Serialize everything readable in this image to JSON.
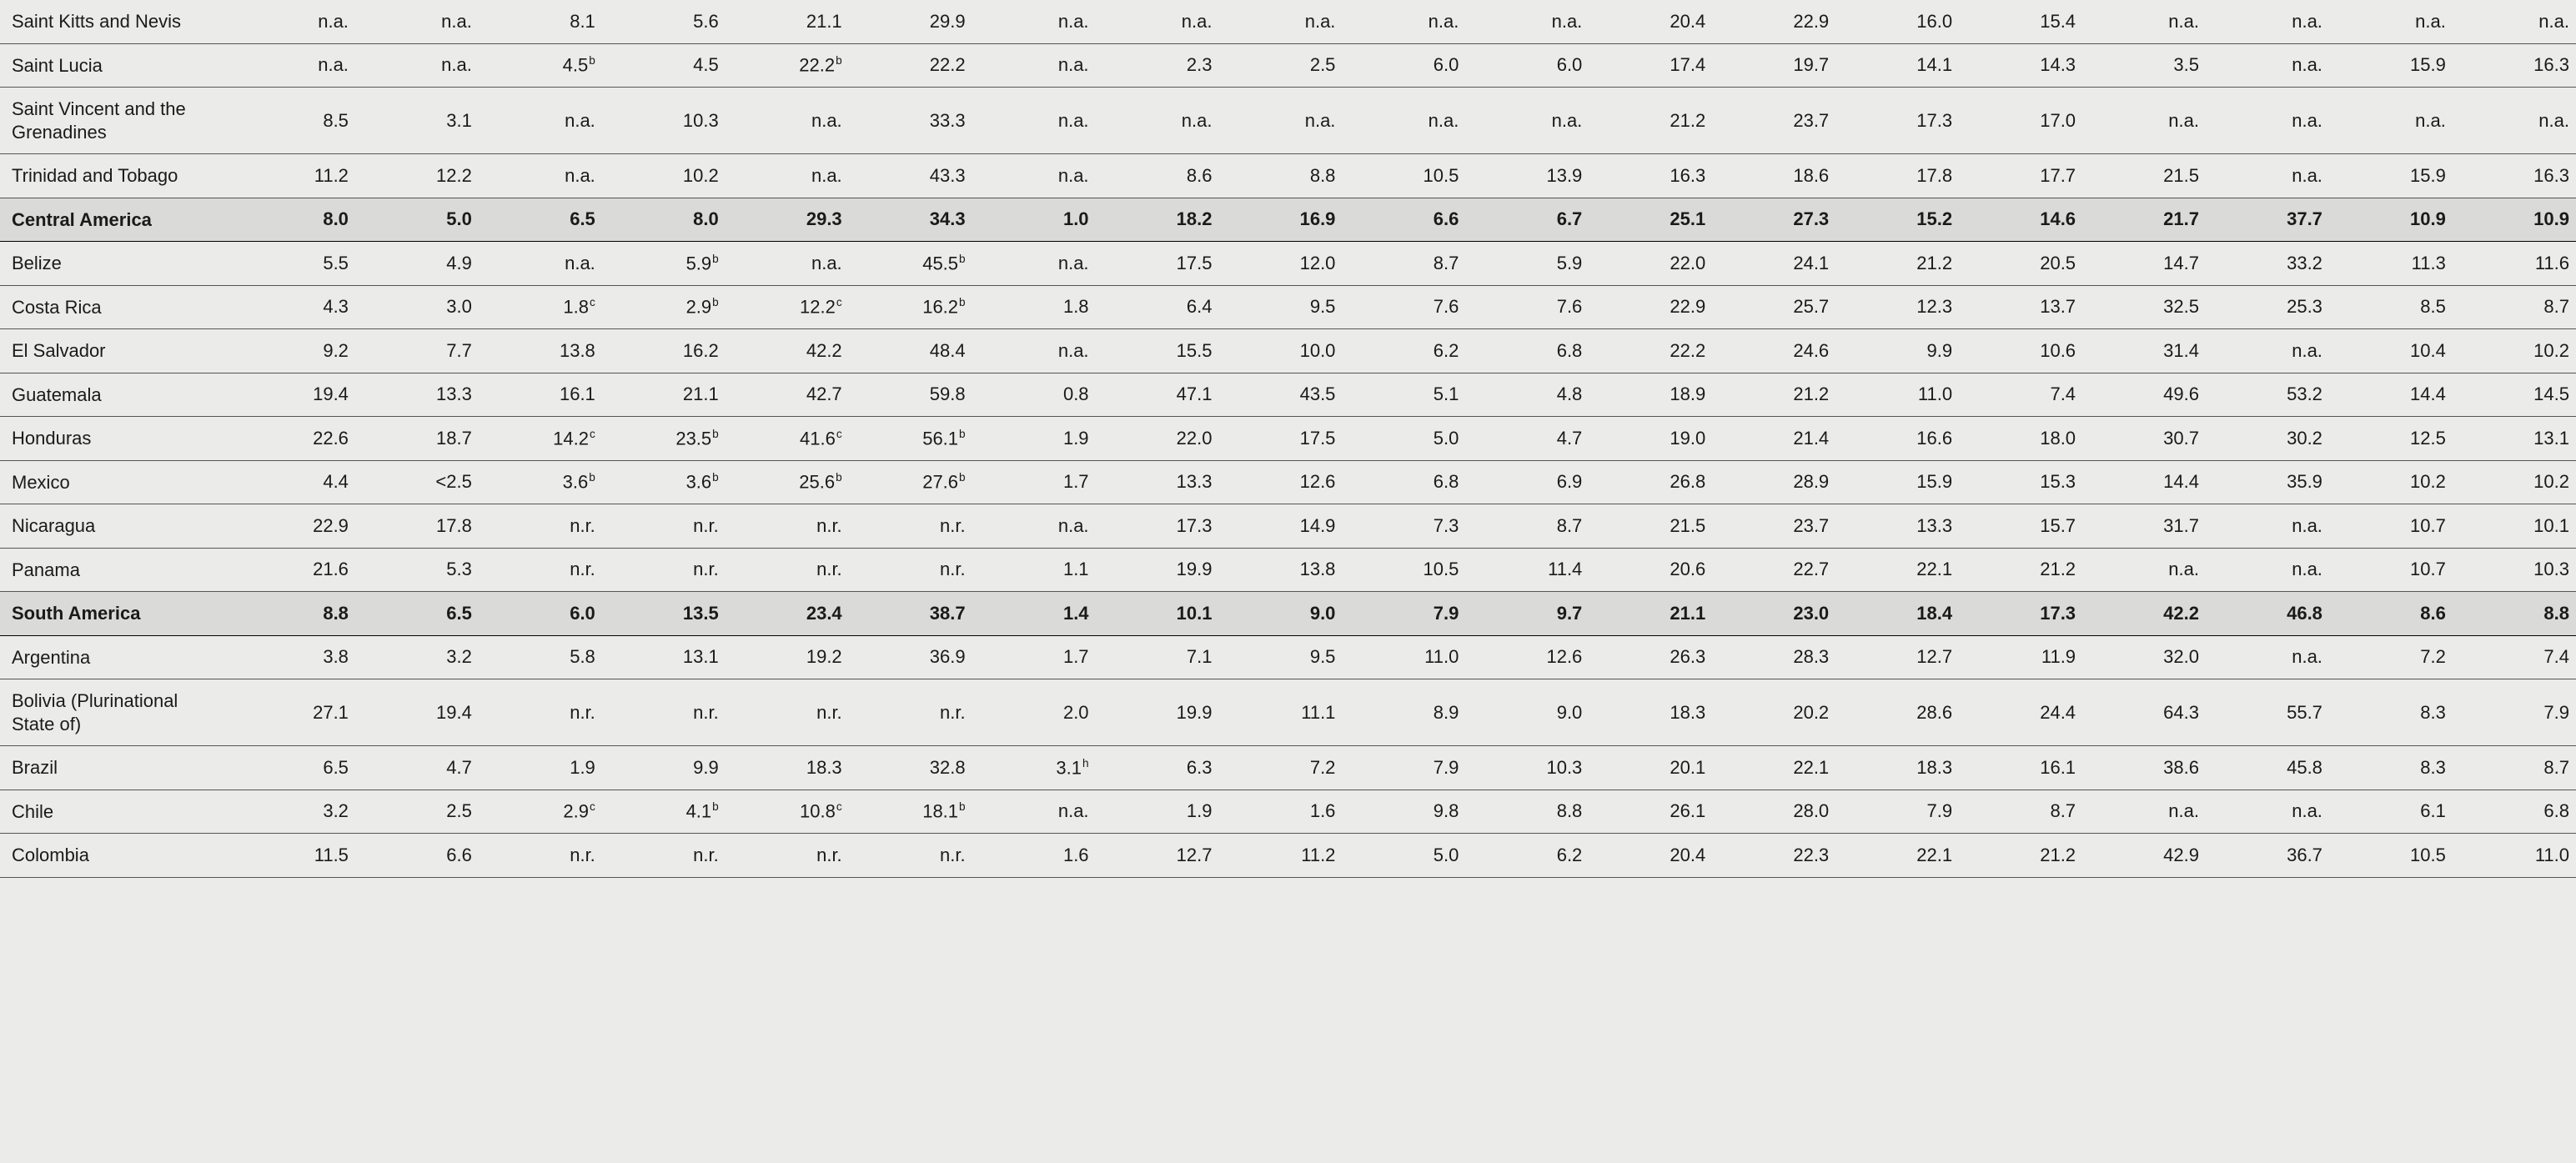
{
  "rows": [
    {
      "label": "Saint Kitts and Nevis",
      "region": false,
      "values": [
        "n.a.",
        "n.a.",
        "8.1",
        "5.6",
        "21.1",
        "29.9",
        "n.a.",
        "n.a.",
        "n.a.",
        "n.a.",
        "n.a.",
        "20.4",
        "22.9",
        "16.0",
        "15.4",
        "n.a.",
        "n.a.",
        "n.a.",
        "n.a."
      ],
      "notes": {}
    },
    {
      "label": "Saint Lucia",
      "region": false,
      "values": [
        "n.a.",
        "n.a.",
        "4.5",
        "4.5",
        "22.2",
        "22.2",
        "n.a.",
        "2.3",
        "2.5",
        "6.0",
        "6.0",
        "17.4",
        "19.7",
        "14.1",
        "14.3",
        "3.5",
        "n.a.",
        "15.9",
        "16.3"
      ],
      "notes": {
        "2": "b",
        "4": "b"
      }
    },
    {
      "label": "Saint Vincent and the Grenadines",
      "region": false,
      "values": [
        "8.5",
        "3.1",
        "n.a.",
        "10.3",
        "n.a.",
        "33.3",
        "n.a.",
        "n.a.",
        "n.a.",
        "n.a.",
        "n.a.",
        "21.2",
        "23.7",
        "17.3",
        "17.0",
        "n.a.",
        "n.a.",
        "n.a.",
        "n.a."
      ],
      "notes": {}
    },
    {
      "label": "Trinidad and Tobago",
      "region": false,
      "values": [
        "11.2",
        "12.2",
        "n.a.",
        "10.2",
        "n.a.",
        "43.3",
        "n.a.",
        "8.6",
        "8.8",
        "10.5",
        "13.9",
        "16.3",
        "18.6",
        "17.8",
        "17.7",
        "21.5",
        "n.a.",
        "15.9",
        "16.3"
      ],
      "notes": {}
    },
    {
      "label": "Central America",
      "region": true,
      "values": [
        "8.0",
        "5.0",
        "6.5",
        "8.0",
        "29.3",
        "34.3",
        "1.0",
        "18.2",
        "16.9",
        "6.6",
        "6.7",
        "25.1",
        "27.3",
        "15.2",
        "14.6",
        "21.7",
        "37.7",
        "10.9",
        "10.9"
      ],
      "notes": {}
    },
    {
      "label": "Belize",
      "region": false,
      "values": [
        "5.5",
        "4.9",
        "n.a.",
        "5.9",
        "n.a.",
        "45.5",
        "n.a.",
        "17.5",
        "12.0",
        "8.7",
        "5.9",
        "22.0",
        "24.1",
        "21.2",
        "20.5",
        "14.7",
        "33.2",
        "11.3",
        "11.6"
      ],
      "notes": {
        "3": "b",
        "5": "b"
      }
    },
    {
      "label": "Costa Rica",
      "region": false,
      "values": [
        "4.3",
        "3.0",
        "1.8",
        "2.9",
        "12.2",
        "16.2",
        "1.8",
        "6.4",
        "9.5",
        "7.6",
        "7.6",
        "22.9",
        "25.7",
        "12.3",
        "13.7",
        "32.5",
        "25.3",
        "8.5",
        "8.7"
      ],
      "notes": {
        "2": "c",
        "3": "b",
        "4": "c",
        "5": "b"
      }
    },
    {
      "label": "El Salvador",
      "region": false,
      "values": [
        "9.2",
        "7.7",
        "13.8",
        "16.2",
        "42.2",
        "48.4",
        "n.a.",
        "15.5",
        "10.0",
        "6.2",
        "6.8",
        "22.2",
        "24.6",
        "9.9",
        "10.6",
        "31.4",
        "n.a.",
        "10.4",
        "10.2"
      ],
      "notes": {}
    },
    {
      "label": "Guatemala",
      "region": false,
      "values": [
        "19.4",
        "13.3",
        "16.1",
        "21.1",
        "42.7",
        "59.8",
        "0.8",
        "47.1",
        "43.5",
        "5.1",
        "4.8",
        "18.9",
        "21.2",
        "11.0",
        "7.4",
        "49.6",
        "53.2",
        "14.4",
        "14.5"
      ],
      "notes": {}
    },
    {
      "label": "Honduras",
      "region": false,
      "values": [
        "22.6",
        "18.7",
        "14.2",
        "23.5",
        "41.6",
        "56.1",
        "1.9",
        "22.0",
        "17.5",
        "5.0",
        "4.7",
        "19.0",
        "21.4",
        "16.6",
        "18.0",
        "30.7",
        "30.2",
        "12.5",
        "13.1"
      ],
      "notes": {
        "2": "c",
        "3": "b",
        "4": "c",
        "5": "b"
      }
    },
    {
      "label": "Mexico",
      "region": false,
      "values": [
        "4.4",
        "<2.5",
        "3.6",
        "3.6",
        "25.6",
        "27.6",
        "1.7",
        "13.3",
        "12.6",
        "6.8",
        "6.9",
        "26.8",
        "28.9",
        "15.9",
        "15.3",
        "14.4",
        "35.9",
        "10.2",
        "10.2"
      ],
      "notes": {
        "2": "b",
        "3": "b",
        "4": "b",
        "5": "b"
      }
    },
    {
      "label": "Nicaragua",
      "region": false,
      "values": [
        "22.9",
        "17.8",
        "n.r.",
        "n.r.",
        "n.r.",
        "n.r.",
        "n.a.",
        "17.3",
        "14.9",
        "7.3",
        "8.7",
        "21.5",
        "23.7",
        "13.3",
        "15.7",
        "31.7",
        "n.a.",
        "10.7",
        "10.1"
      ],
      "notes": {}
    },
    {
      "label": "Panama",
      "region": false,
      "values": [
        "21.6",
        "5.3",
        "n.r.",
        "n.r.",
        "n.r.",
        "n.r.",
        "1.1",
        "19.9",
        "13.8",
        "10.5",
        "11.4",
        "20.6",
        "22.7",
        "22.1",
        "21.2",
        "n.a.",
        "n.a.",
        "10.7",
        "10.3"
      ],
      "notes": {}
    },
    {
      "label": "South America",
      "region": true,
      "values": [
        "8.8",
        "6.5",
        "6.0",
        "13.5",
        "23.4",
        "38.7",
        "1.4",
        "10.1",
        "9.0",
        "7.9",
        "9.7",
        "21.1",
        "23.0",
        "18.4",
        "17.3",
        "42.2",
        "46.8",
        "8.6",
        "8.8"
      ],
      "notes": {}
    },
    {
      "label": "Argentina",
      "region": false,
      "values": [
        "3.8",
        "3.2",
        "5.8",
        "13.1",
        "19.2",
        "36.9",
        "1.7",
        "7.1",
        "9.5",
        "11.0",
        "12.6",
        "26.3",
        "28.3",
        "12.7",
        "11.9",
        "32.0",
        "n.a.",
        "7.2",
        "7.4"
      ],
      "notes": {}
    },
    {
      "label": "Bolivia (Plurinational State of)",
      "region": false,
      "values": [
        "27.1",
        "19.4",
        "n.r.",
        "n.r.",
        "n.r.",
        "n.r.",
        "2.0",
        "19.9",
        "11.1",
        "8.9",
        "9.0",
        "18.3",
        "20.2",
        "28.6",
        "24.4",
        "64.3",
        "55.7",
        "8.3",
        "7.9"
      ],
      "notes": {}
    },
    {
      "label": "Brazil",
      "region": false,
      "values": [
        "6.5",
        "4.7",
        "1.9",
        "9.9",
        "18.3",
        "32.8",
        "3.1",
        "6.3",
        "7.2",
        "7.9",
        "10.3",
        "20.1",
        "22.1",
        "18.3",
        "16.1",
        "38.6",
        "45.8",
        "8.3",
        "8.7"
      ],
      "notes": {
        "6": "h"
      }
    },
    {
      "label": "Chile",
      "region": false,
      "values": [
        "3.2",
        "2.5",
        "2.9",
        "4.1",
        "10.8",
        "18.1",
        "n.a.",
        "1.9",
        "1.6",
        "9.8",
        "8.8",
        "26.1",
        "28.0",
        "7.9",
        "8.7",
        "n.a.",
        "n.a.",
        "6.1",
        "6.8"
      ],
      "notes": {
        "2": "c",
        "3": "b",
        "4": "c",
        "5": "b"
      }
    },
    {
      "label": "Colombia",
      "region": false,
      "values": [
        "11.5",
        "6.6",
        "n.r.",
        "n.r.",
        "n.r.",
        "n.r.",
        "1.6",
        "12.7",
        "11.2",
        "5.0",
        "6.2",
        "20.4",
        "22.3",
        "22.1",
        "21.2",
        "42.9",
        "36.7",
        "10.5",
        "11.0"
      ],
      "notes": {}
    }
  ]
}
